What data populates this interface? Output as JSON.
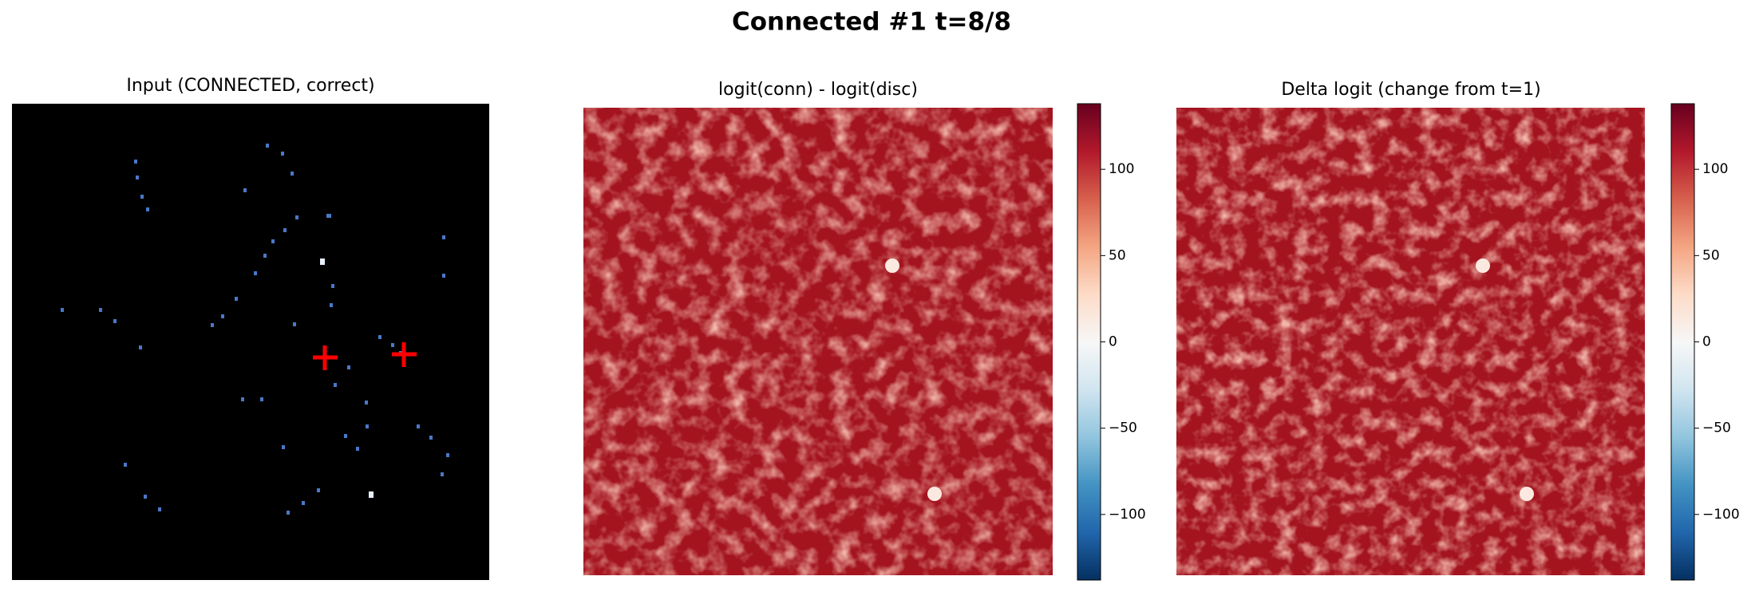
{
  "figure_title": "Connected #1  t=8/8",
  "chart_data": [
    {
      "type": "image",
      "title": "Input (CONNECTED, correct)"
    },
    {
      "type": "heatmap",
      "title": "logit(conn) - logit(disc)",
      "colorbar": {
        "lim": [
          -138,
          138
        ],
        "ticks": [
          {
            "value": -100,
            "label": "−100"
          },
          {
            "value": -50,
            "label": "−50"
          },
          0,
          50,
          100
        ]
      }
    },
    {
      "type": "heatmap",
      "title": "Delta logit (change from t=1)",
      "colorbar": {
        "lim": [
          -138,
          138
        ],
        "ticks": [
          {
            "value": -100,
            "label": "−100"
          },
          {
            "value": -50,
            "label": "−50"
          },
          0,
          50,
          100
        ]
      }
    }
  ]
}
